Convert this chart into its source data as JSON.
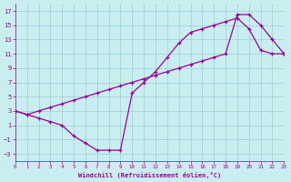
{
  "xlabel": "Windchill (Refroidissement éolien,°C)",
  "bg_color": "#c8eef0",
  "line_color": "#990099",
  "grid_color": "#9ecdd6",
  "xlim": [
    0,
    23
  ],
  "ylim": [
    -4,
    18
  ],
  "xticks": [
    0,
    1,
    2,
    3,
    4,
    5,
    6,
    7,
    8,
    9,
    10,
    11,
    12,
    13,
    14,
    15,
    16,
    17,
    18,
    19,
    20,
    21,
    22,
    23
  ],
  "yticks": [
    -3,
    -1,
    1,
    3,
    5,
    7,
    9,
    11,
    13,
    15,
    17
  ],
  "curve1_x": [
    0,
    1,
    2,
    3,
    4,
    5,
    6,
    7,
    8,
    9,
    10,
    11,
    12,
    13,
    14,
    15,
    16,
    17,
    18,
    19,
    20,
    21,
    22,
    23
  ],
  "curve1_y": [
    3,
    2.5,
    2,
    1.5,
    1,
    -0.5,
    -1.5,
    -2.5,
    -2.5,
    -2.5,
    5.5,
    7.0,
    8.5,
    10.5,
    12.5,
    14.0,
    14.5,
    15.0,
    15.5,
    16.0,
    14.5,
    11.5,
    11.0,
    11.0
  ],
  "curve2_x": [
    0,
    1,
    2,
    3,
    4,
    5,
    6,
    7,
    8,
    9,
    10,
    11,
    12,
    13,
    14,
    15,
    16,
    17,
    18,
    19,
    20,
    21,
    22,
    23
  ],
  "curve2_y": [
    3,
    2.5,
    3,
    3.5,
    4,
    4.5,
    5,
    5.5,
    6,
    6.5,
    7,
    7.5,
    8,
    8.5,
    9,
    9.5,
    10,
    10.5,
    11,
    16.5,
    16.5,
    15,
    13,
    11
  ]
}
